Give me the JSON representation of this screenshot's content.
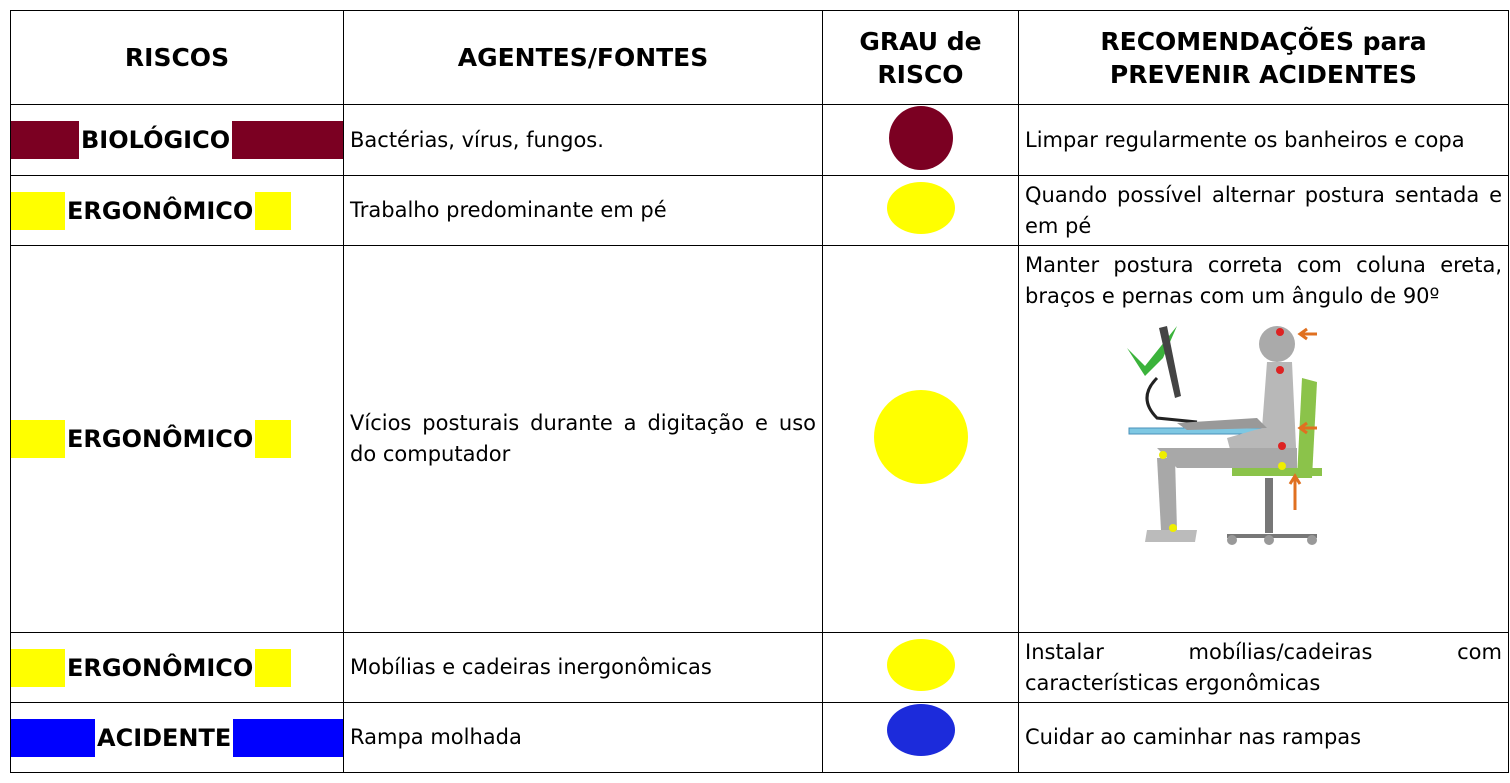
{
  "header": {
    "columns": [
      "RISCOS",
      "AGENTES/FONTES",
      "GRAU de RISCO",
      "RECOMENDAÇÕES para PREVENIR ACIDENTES"
    ]
  },
  "rows": [
    {
      "risco": "BIOLÓGICO",
      "agente": "Bactérias, vírus, fungos.",
      "recomendacao": "Limpar regularmente os banheiros e copa"
    },
    {
      "risco": "ERGONÔMICO",
      "agente": "Trabalho predominante em pé",
      "recomendacao": "Quando possível alternar postura sentada e em pé"
    },
    {
      "risco": "ERGONÔMICO",
      "agente": "Vícios posturais durante a digitação e uso do computador",
      "recomendacao": "Manter postura correta com coluna ereta, braços e pernas com um ângulo de 90º"
    },
    {
      "risco": "ERGONÔMICO",
      "agente": "Mobílias e cadeiras inergonômicas",
      "recomendacao": "Instalar mobílias/cadeiras com características ergonômicas"
    },
    {
      "risco": "ACIDENTE",
      "agente": "Rampa molhada",
      "recomendacao": "Cuidar ao caminhar nas rampas"
    }
  ]
}
